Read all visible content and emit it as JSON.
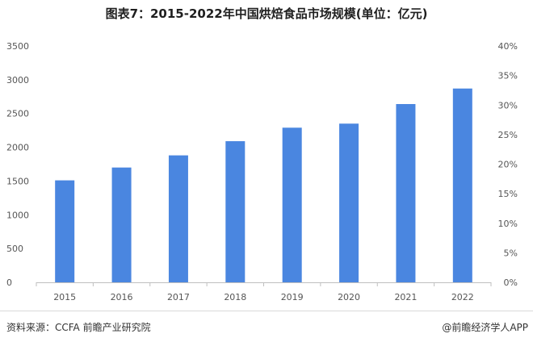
{
  "chart_data": {
    "type": "bar",
    "title": "图表7：2015-2022年中国烘焙食品市场规模(单位：亿元)",
    "categories": [
      "2015",
      "2016",
      "2017",
      "2018",
      "2019",
      "2020",
      "2021",
      "2022"
    ],
    "series": [
      {
        "values": [
          1510,
          1700,
          1880,
          2090,
          2290,
          2350,
          2640,
          2870
        ]
      }
    ],
    "y_left": {
      "min": 0,
      "max": 3500,
      "ticks": [
        "0",
        "500",
        "1000",
        "1500",
        "2000",
        "2500",
        "3000",
        "3500"
      ]
    },
    "y_right": {
      "min": 0,
      "max": 40,
      "ticks": [
        "0%",
        "5%",
        "10%",
        "15%",
        "20%",
        "25%",
        "30%",
        "35%",
        "40%"
      ]
    },
    "grid": false,
    "bar_color": "#4a86e0"
  },
  "footer": {
    "source": "资料来源：CCFA 前瞻产业研究院",
    "brand": "@前瞻经济学人APP"
  }
}
